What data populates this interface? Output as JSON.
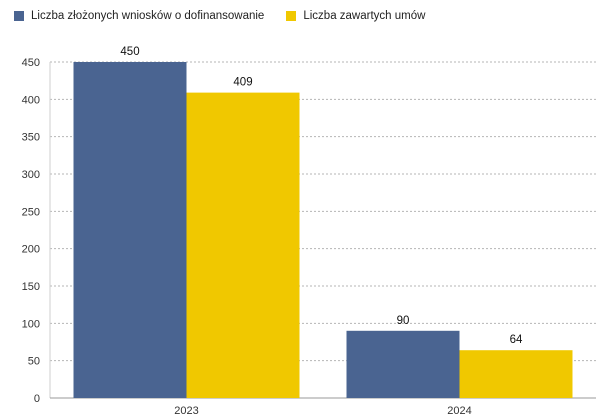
{
  "chart_data": {
    "type": "bar",
    "categories": [
      "2023",
      "2024"
    ],
    "series": [
      {
        "name": "Liczba złożonych wniosków o dofinansowanie",
        "color": "#4a6491",
        "values": [
          450,
          90
        ]
      },
      {
        "name": "Liczba zawartych umów",
        "color": "#f0c800",
        "values": [
          409,
          64
        ]
      }
    ],
    "ylim": [
      0,
      450
    ],
    "yticks": [
      0,
      50,
      100,
      150,
      200,
      250,
      300,
      350,
      400,
      450
    ],
    "grid": true,
    "legend_position": "top-left",
    "title": "",
    "xlabel": "",
    "ylabel": ""
  }
}
